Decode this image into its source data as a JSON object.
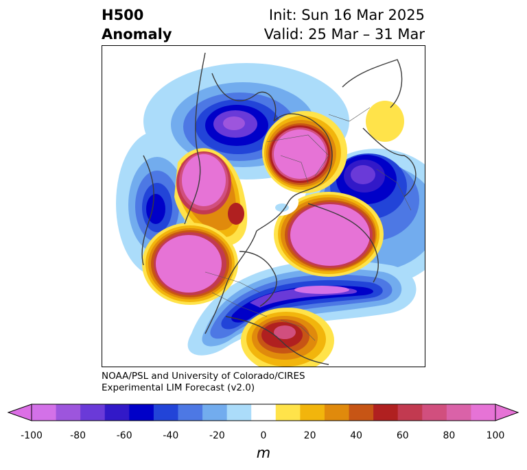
{
  "title": {
    "left_line1": "H500",
    "left_line2": "Anomaly",
    "right_line1": "Init: Sun 16 Mar 2025",
    "right_line2": "Valid: 25 Mar – 31 Mar"
  },
  "credits": {
    "line1": "NOAA/PSL and University of Colorado/CIRES",
    "line2": "Experimental LIM Forecast (v2.0)"
  },
  "colorbar": {
    "units": "m",
    "ticks": [
      "-100",
      "-80",
      "-60",
      "-40",
      "-20",
      "0",
      "20",
      "40",
      "60",
      "80",
      "100"
    ],
    "bins": [
      {
        "range": "<-100",
        "color": "#dc6fe6"
      },
      {
        "range": "-100..-90",
        "color": "#d371e8"
      },
      {
        "range": "-90..-80",
        "color": "#9d55dd"
      },
      {
        "range": "-80..-70",
        "color": "#6a3ad8"
      },
      {
        "range": "-70..-60",
        "color": "#3219c8"
      },
      {
        "range": "-60..-50",
        "color": "#0000c8"
      },
      {
        "range": "-50..-40",
        "color": "#2244d8"
      },
      {
        "range": "-40..-30",
        "color": "#4d78e4"
      },
      {
        "range": "-30..-20",
        "color": "#72acee"
      },
      {
        "range": "-20..-10",
        "color": "#abdcfa"
      },
      {
        "range": "-10..10",
        "color": "#ffffff"
      },
      {
        "range": "10..20",
        "color": "#ffe34a"
      },
      {
        "range": "20..30",
        "color": "#f2b50c"
      },
      {
        "range": "30..40",
        "color": "#e08a0c"
      },
      {
        "range": "40..50",
        "color": "#c75515"
      },
      {
        "range": "50..60",
        "color": "#b02020"
      },
      {
        "range": "60..70",
        "color": "#c23a50"
      },
      {
        "range": "70..80",
        "color": "#d14f7e"
      },
      {
        "range": "80..90",
        "color": "#da62a8"
      },
      {
        "range": "90..100",
        "color": "#e673d6"
      },
      {
        "range": ">100",
        "color": "#e673d6"
      }
    ]
  },
  "anomalies": [
    {
      "name": "alaska-low",
      "sign": "negative",
      "peak": -80
    },
    {
      "name": "siberia-high",
      "sign": "positive",
      "peak": 100
    },
    {
      "name": "scandinavia-low",
      "sign": "negative",
      "peak": -70
    },
    {
      "name": "greenland-high",
      "sign": "positive",
      "peak": 100
    },
    {
      "name": "europe-high",
      "sign": "positive",
      "peak": 100
    },
    {
      "name": "pacific-high",
      "sign": "positive",
      "peak": 100
    },
    {
      "name": "north-atlantic-trough",
      "sign": "negative",
      "peak": -80
    },
    {
      "name": "west-pacific-low",
      "sign": "negative",
      "peak": -70
    },
    {
      "name": "southeast-high",
      "sign": "positive",
      "peak": 90
    },
    {
      "name": "east-asia-high",
      "sign": "positive",
      "peak": 20
    }
  ]
}
